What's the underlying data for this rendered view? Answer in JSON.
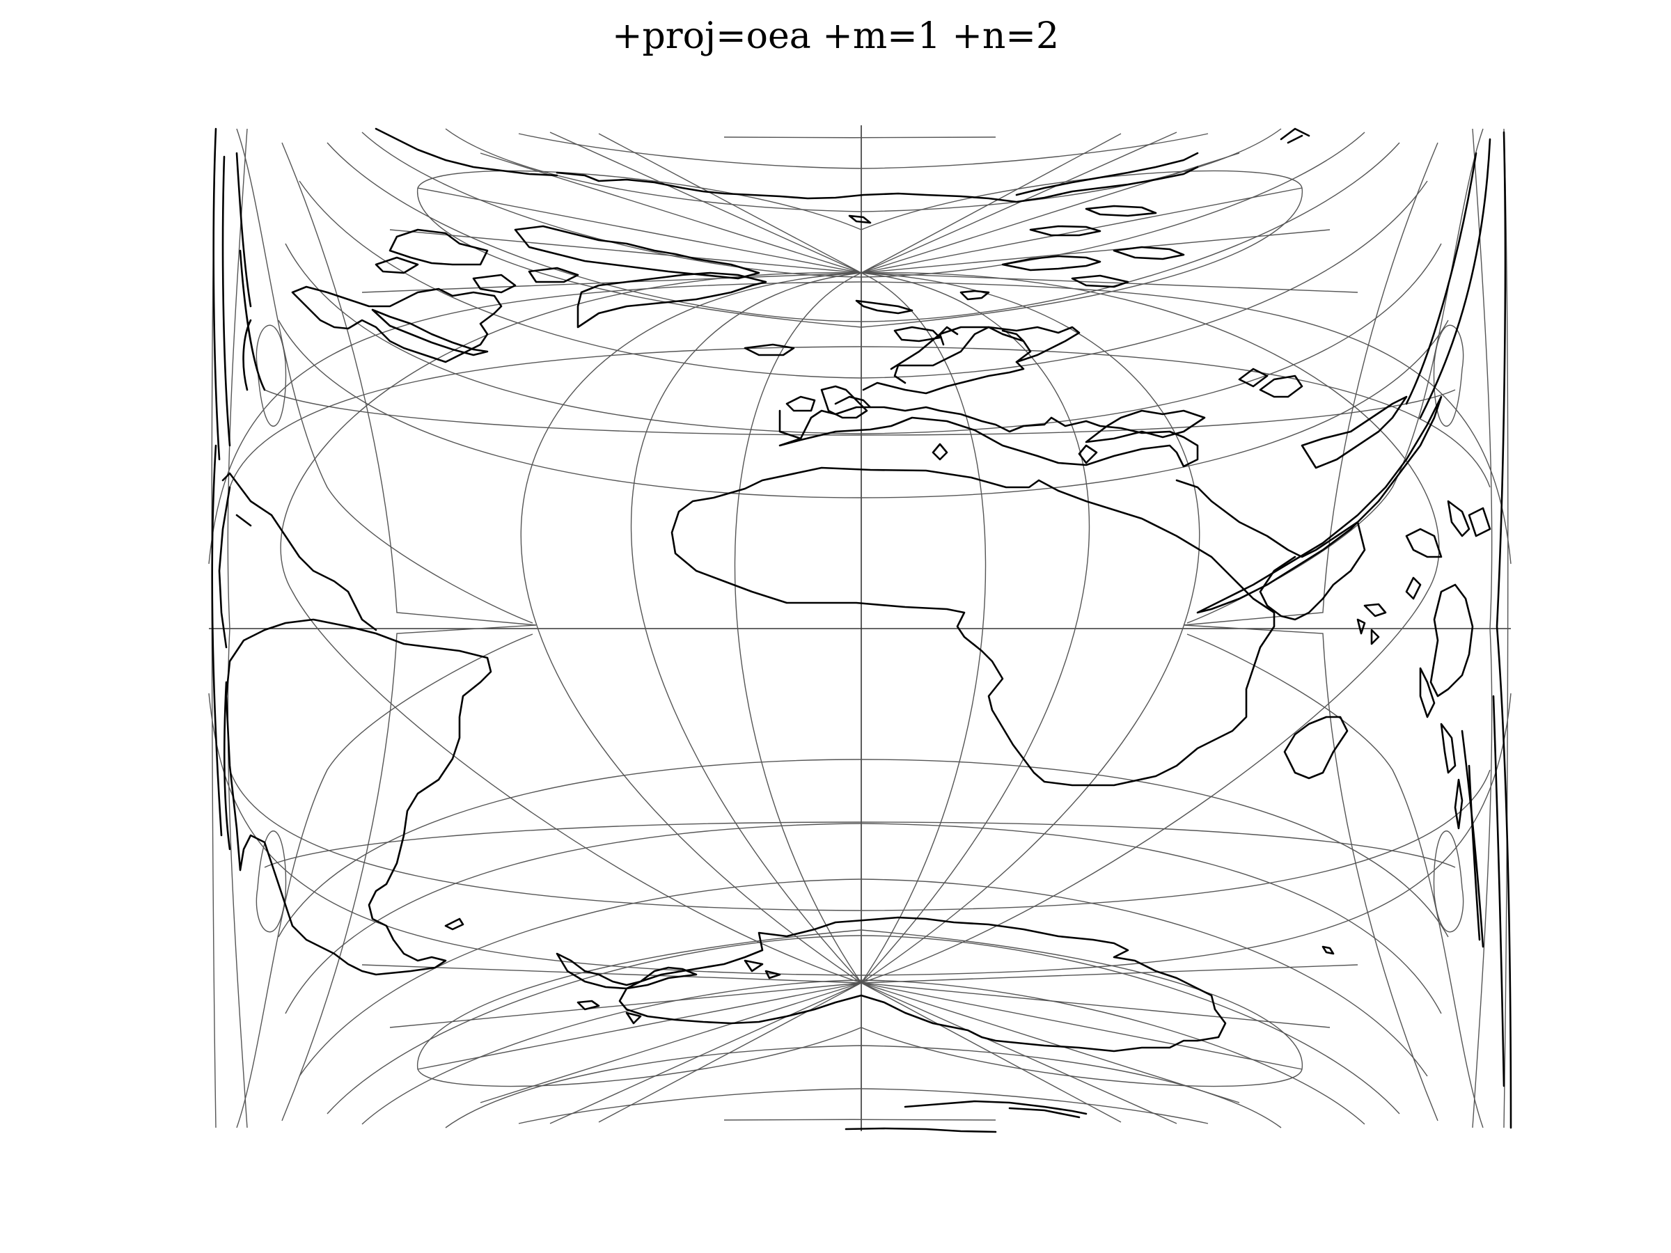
{
  "title": "+proj=oea +m=1 +n=2",
  "style": {
    "graticule_color": "#555555",
    "coastline_color": "#000000",
    "background": "#ffffff"
  },
  "map": {
    "projection": "Oblated Equal Area",
    "projection_parameters": {
      "m": 1,
      "n": 2
    },
    "layers": [
      "graticule",
      "coastlines"
    ],
    "regions": [
      "North America",
      "Greenland",
      "Europe",
      "Africa",
      "South America",
      "Asia",
      "Australia",
      "Antarctica"
    ]
  }
}
